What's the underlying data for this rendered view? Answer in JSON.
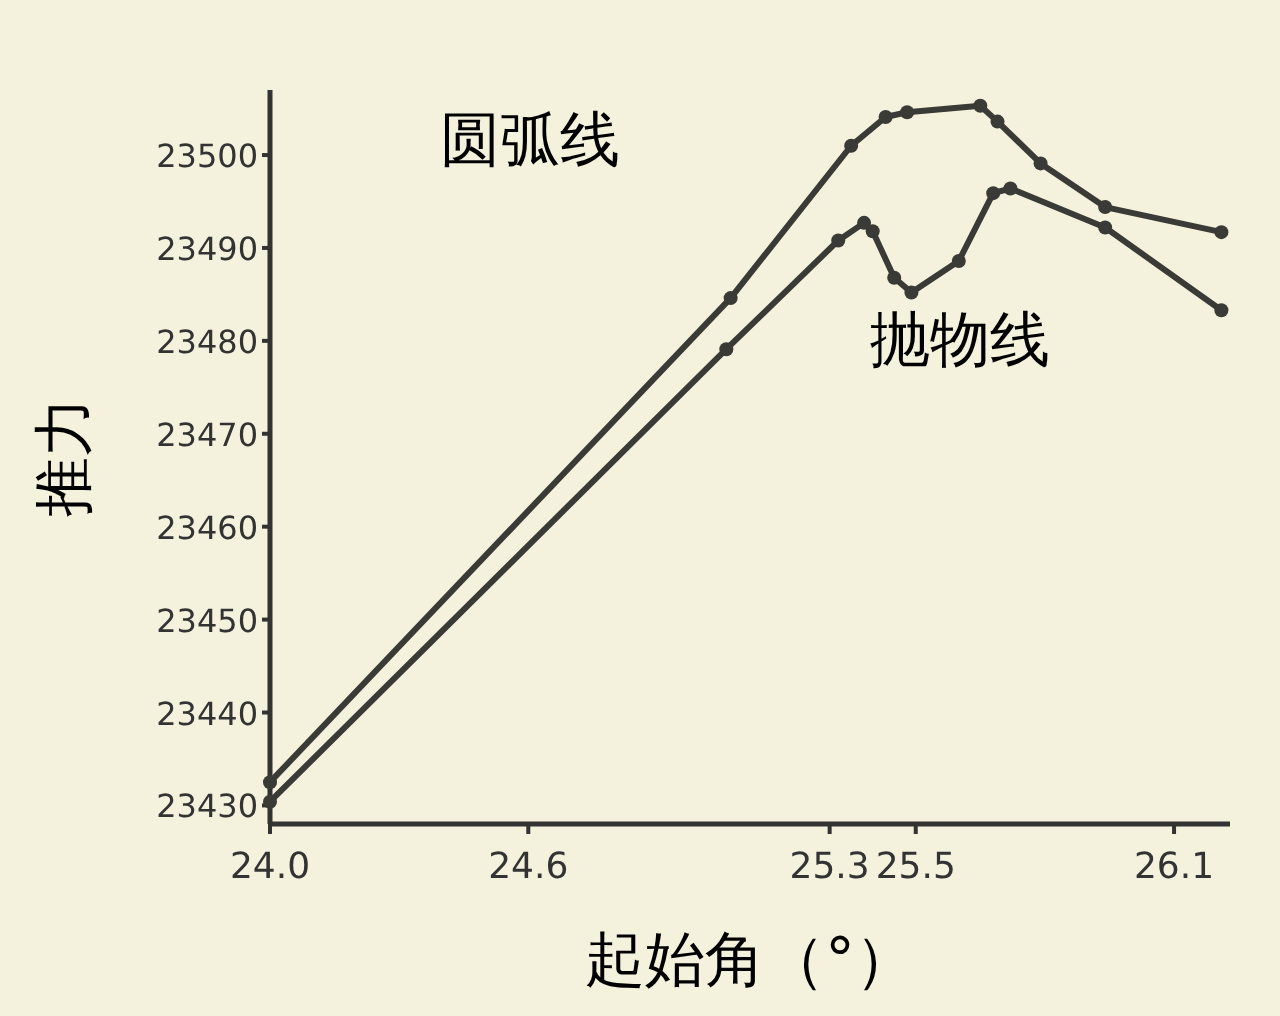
{
  "chart_data": {
    "type": "line",
    "xlabel": "起始角（°）",
    "ylabel": "推力",
    "xlim": [
      24.0,
      26.23
    ],
    "xticks": [
      {
        "value": 24.0,
        "label": "24.0"
      },
      24.6,
      25.3,
      25.5,
      26.1
    ],
    "ylim": [
      23428,
      23507
    ],
    "yticks": [
      23430,
      23440,
      23450,
      23460,
      23470,
      23480,
      23490,
      23500
    ],
    "grid": false,
    "marker": "circle",
    "line_style": "solid",
    "series": [
      {
        "name": "圆弧线",
        "color": "#3a3a36",
        "x": [
          24.0,
          25.07,
          25.35,
          25.43,
          25.48,
          25.65,
          25.69,
          25.79,
          25.94,
          26.21
        ],
        "values": [
          23432.5,
          23484.6,
          23501,
          23504.1,
          23504.6,
          23505.3,
          23503.6,
          23499.1,
          23494.4,
          23491.7
        ]
      },
      {
        "name": "抛物线",
        "color": "#3a3a36",
        "x": [
          24.0,
          25.06,
          25.32,
          25.38,
          25.4,
          25.45,
          25.49,
          25.6,
          25.68,
          25.72,
          25.94,
          26.21
        ],
        "values": [
          23430.4,
          23479.1,
          23490.8,
          23492.7,
          23491.8,
          23486.8,
          23485.2,
          23488.6,
          23495.9,
          23496.4,
          23492.2,
          23483.3
        ]
      }
    ]
  }
}
